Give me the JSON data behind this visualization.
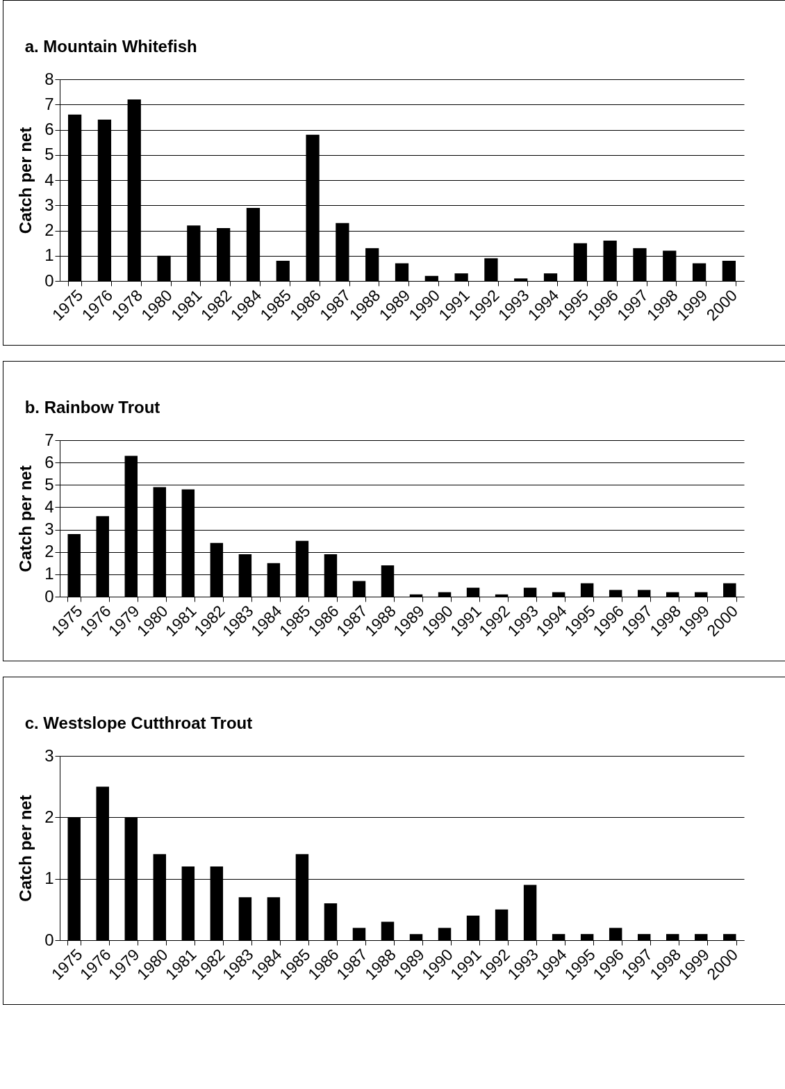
{
  "chart_data": [
    {
      "type": "bar",
      "title": "a. Mountain Whitefish",
      "ylabel": "Catch per net",
      "categories": [
        "1975",
        "1976",
        "1978",
        "1980",
        "1981",
        "1982",
        "1984",
        "1985",
        "1986",
        "1987",
        "1988",
        "1989",
        "1990",
        "1991",
        "1992",
        "1993",
        "1994",
        "1995",
        "1996",
        "1997",
        "1998",
        "1999",
        "2000"
      ],
      "values": [
        6.6,
        6.4,
        7.2,
        1.0,
        2.2,
        2.1,
        2.9,
        0.8,
        5.8,
        2.3,
        1.3,
        0.7,
        0.2,
        0.3,
        0.9,
        0.1,
        0.3,
        1.5,
        1.6,
        1.3,
        1.2,
        0.7,
        0.8
      ],
      "color": "#000000",
      "ylim": [
        0,
        8
      ],
      "yticks": [
        0,
        1,
        2,
        3,
        4,
        5,
        6,
        7,
        8
      ],
      "grid": "y"
    },
    {
      "type": "bar",
      "title": "b. Rainbow Trout",
      "ylabel": "Catch per net",
      "categories": [
        "1975",
        "1976",
        "1979",
        "1980",
        "1981",
        "1982",
        "1983",
        "1984",
        "1985",
        "1986",
        "1987",
        "1988",
        "1989",
        "1990",
        "1991",
        "1992",
        "1993",
        "1994",
        "1995",
        "1996",
        "1997",
        "1998",
        "1999",
        "2000"
      ],
      "values": [
        2.8,
        3.6,
        6.3,
        4.9,
        4.8,
        2.4,
        1.9,
        1.5,
        2.5,
        1.9,
        0.7,
        1.4,
        0.1,
        0.2,
        0.4,
        0.1,
        0.4,
        0.2,
        0.6,
        0.3,
        0.3,
        0.2,
        0.2,
        0.6
      ],
      "color": "#000000",
      "ylim": [
        0,
        7
      ],
      "yticks": [
        0,
        1,
        2,
        3,
        4,
        5,
        6,
        7
      ],
      "grid": "y"
    },
    {
      "type": "bar",
      "title": "c. Westslope Cutthroat Trout",
      "ylabel": "Catch per net",
      "categories": [
        "1975",
        "1976",
        "1979",
        "1980",
        "1981",
        "1982",
        "1983",
        "1984",
        "1985",
        "1986",
        "1987",
        "1988",
        "1989",
        "1990",
        "1991",
        "1992",
        "1993",
        "1994",
        "1995",
        "1996",
        "1997",
        "1998",
        "1999",
        "2000"
      ],
      "values": [
        2.0,
        2.5,
        2.0,
        1.4,
        1.2,
        1.2,
        0.7,
        0.7,
        1.4,
        0.6,
        0.2,
        0.3,
        0.1,
        0.2,
        0.4,
        0.5,
        0.9,
        0.1,
        0.1,
        0.2,
        0.1,
        0.1,
        0.1,
        0.1
      ],
      "color": "#000000",
      "ylim": [
        0,
        3
      ],
      "yticks": [
        0,
        1,
        2,
        3
      ],
      "grid": "y"
    }
  ]
}
